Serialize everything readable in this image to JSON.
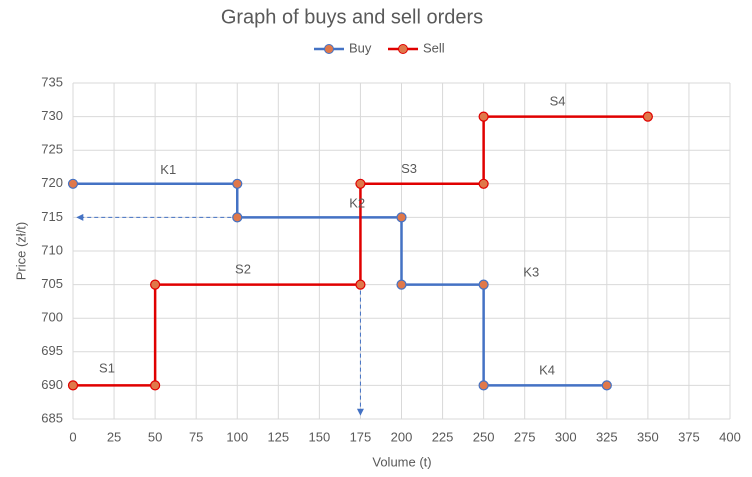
{
  "chart_data": {
    "type": "line",
    "title": "Graph of buys and sell orders",
    "x_label": "Volume (t)",
    "y_label": "Price (zł/t)",
    "xlim": [
      0,
      400
    ],
    "ylim": [
      685,
      735
    ],
    "xticks": [
      0,
      25,
      50,
      75,
      100,
      125,
      150,
      175,
      200,
      225,
      250,
      275,
      300,
      325,
      350,
      375,
      400
    ],
    "yticks": [
      685,
      690,
      695,
      700,
      705,
      710,
      715,
      720,
      725,
      730,
      735
    ],
    "grid": true,
    "legend": "top",
    "marker_color": "#e0784a",
    "series": [
      {
        "name": "Buy",
        "color": "#4472c4",
        "x": [
          0,
          100,
          100,
          200,
          200,
          250,
          250,
          325
        ],
        "values": [
          720,
          720,
          715,
          715,
          705,
          705,
          690,
          690
        ]
      },
      {
        "name": "Sell",
        "color": "#e00000",
        "x": [
          0,
          50,
          50,
          175,
          175,
          250,
          250,
          350
        ],
        "values": [
          690,
          690,
          705,
          705,
          720,
          720,
          730,
          730
        ]
      }
    ],
    "annotations": [
      {
        "text": "K1",
        "x": 58,
        "y": 722
      },
      {
        "text": "K2",
        "x": 173,
        "y": 717
      },
      {
        "text": "K3",
        "x": 279,
        "y": 706.7
      },
      {
        "text": "K4",
        "x": 288.6,
        "y": 692.1
      },
      {
        "text": "S1",
        "x": 20.7,
        "y": 692.4
      },
      {
        "text": "S2",
        "x": 103.5,
        "y": 707.2
      },
      {
        "text": "S3",
        "x": 204.6,
        "y": 722.1
      },
      {
        "text": "S4",
        "x": 295,
        "y": 732.2
      }
    ]
  }
}
